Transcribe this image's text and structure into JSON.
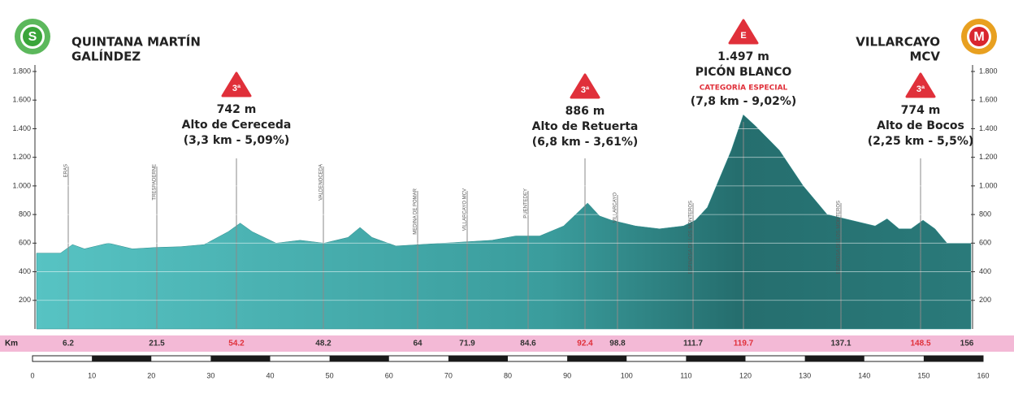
{
  "chart_data": {
    "type": "area",
    "x": [
      0,
      4,
      6,
      8,
      12,
      16,
      20,
      24,
      28,
      32,
      34,
      36,
      40,
      44,
      48,
      52,
      54,
      56,
      60,
      64,
      68,
      72,
      76,
      80,
      84,
      88,
      90,
      92,
      94,
      96,
      98,
      100,
      104,
      108,
      110,
      112,
      114,
      116,
      118,
      120,
      124,
      128,
      132,
      136,
      140,
      142,
      144,
      146,
      148,
      150,
      152,
      156
    ],
    "values": [
      530,
      530,
      590,
      560,
      600,
      560,
      570,
      575,
      590,
      680,
      740,
      680,
      600,
      620,
      600,
      640,
      710,
      640,
      580,
      590,
      600,
      610,
      620,
      650,
      650,
      720,
      800,
      880,
      790,
      760,
      740,
      720,
      700,
      720,
      760,
      850,
      1050,
      1250,
      1497,
      1420,
      1250,
      1000,
      800,
      760,
      720,
      770,
      700,
      700,
      760,
      700,
      600,
      600
    ],
    "color": "#2f8c8c",
    "xlim": [
      0,
      156
    ],
    "ylim": [
      0,
      1800
    ],
    "yticks": [
      {
        "value": 200,
        "label": "200"
      },
      {
        "value": 400,
        "label": "400"
      },
      {
        "value": 600,
        "label": "600"
      },
      {
        "value": 800,
        "label": "800"
      },
      {
        "value": 1000,
        "label": "1.000"
      },
      {
        "value": 1200,
        "label": "1.200"
      },
      {
        "value": 1400,
        "label": "1.400"
      },
      {
        "value": 1600,
        "label": "1.600"
      },
      {
        "value": 1800,
        "label": "1.800"
      }
    ],
    "grid": true,
    "start": {
      "badge": "S",
      "lines": [
        "QUINTANA MARTÍN",
        "GALÍNDEZ"
      ]
    },
    "finish": {
      "badge": "M",
      "lines": [
        "VILLARCAYO",
        "MCV"
      ]
    },
    "climbs": [
      {
        "badge": "3ª",
        "lines": [
          "742 m",
          "Alto de Cereceda",
          "(3,3 km - 5,09%)"
        ]
      },
      {
        "badge": "3ª",
        "lines": [
          "886 m",
          "Alto de Retuerta",
          "(6,8 km - 3,61%)"
        ]
      },
      {
        "badge": "E",
        "lines": [
          "1.497 m",
          "PICÓN BLANCO",
          "CATEGORÍA ESPECIAL",
          "(7,8 km - 9,02%)"
        ]
      },
      {
        "badge": "3ª",
        "lines": [
          "774 m",
          "Alto de Bocos",
          "(2,25 km - 5,5%)"
        ]
      }
    ],
    "km_label": "Km",
    "waypoints": [
      {
        "km": "6.2",
        "name": "ERAS",
        "color": "#333333"
      },
      {
        "km": "21.5",
        "name": "TRESPADERNE",
        "color": "#333333"
      },
      {
        "km": "54.2",
        "name": null,
        "color": "#e0303a"
      },
      {
        "km": "48.2",
        "name": "VALDENOCEDA",
        "color": "#333333"
      },
      {
        "km": "64",
        "name": "MEDINA DE POMAR",
        "color": "#333333"
      },
      {
        "km": "71.9",
        "name": "VILLARCAYO MCV",
        "color": "#333333"
      },
      {
        "km": "84.6",
        "name": "PUENTEDEY",
        "color": "#333333"
      },
      {
        "km": "92.4",
        "name": null,
        "color": "#e0303a"
      },
      {
        "km": "98.8",
        "name": "VILLARCAYO",
        "color": "#333333"
      },
      {
        "km": "111.7",
        "name": "ESPINOSA DE LOS MONTEROS",
        "color": "#333333"
      },
      {
        "km": "119.7",
        "name": null,
        "color": "#e0303a"
      },
      {
        "km": "137.1",
        "name": "ESPINOSA DE LOS MONTEROS",
        "color": "#333333"
      },
      {
        "km": "148.5",
        "name": null,
        "color": "#e0303a"
      },
      {
        "km": "156",
        "name": null,
        "color": "#333333"
      }
    ],
    "scale": {
      "ticks": [
        0,
        10,
        20,
        30,
        40,
        50,
        60,
        70,
        80,
        90,
        100,
        110,
        120,
        130,
        140,
        150,
        160
      ]
    }
  }
}
